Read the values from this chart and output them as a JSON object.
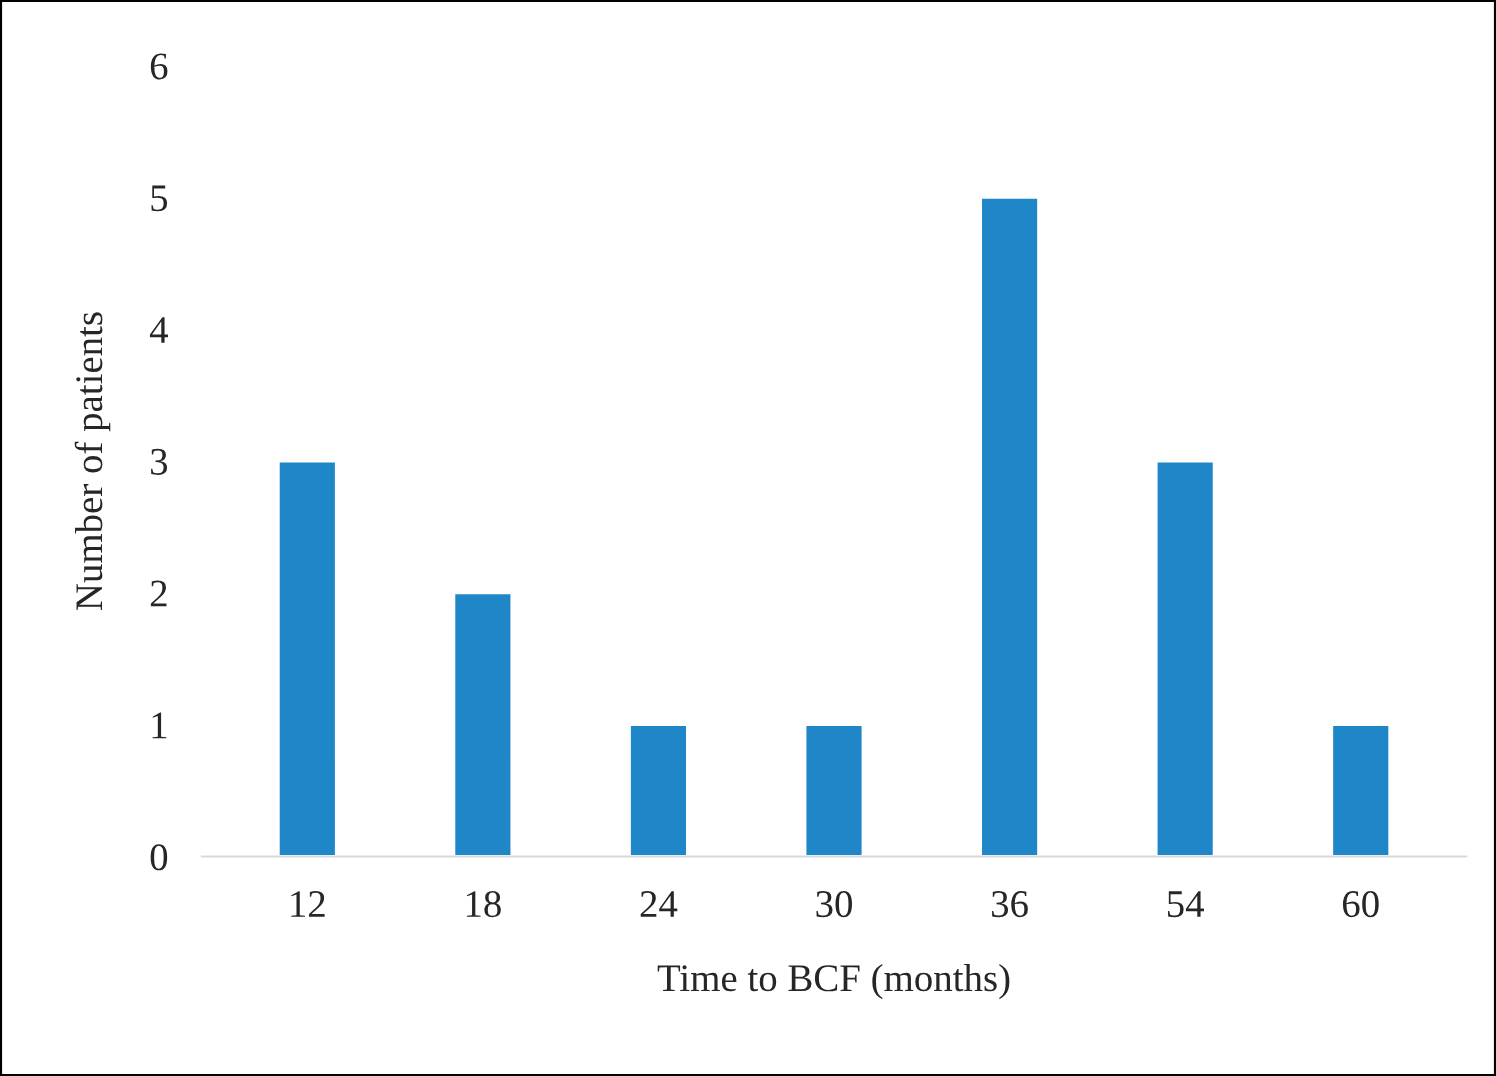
{
  "chart_data": {
    "type": "bar",
    "xlabel": "Time to BCF (months)",
    "ylabel": "Number of patients",
    "categories": [
      "12",
      "18",
      "24",
      "30",
      "36",
      "54",
      "60"
    ],
    "values": [
      3,
      2,
      1,
      1,
      5,
      3,
      1
    ],
    "color": "#1f87c8",
    "ylim": [
      0,
      6
    ],
    "yticks": [
      0,
      1,
      2,
      3,
      4,
      5,
      6
    ],
    "grid": false,
    "legend": false
  }
}
